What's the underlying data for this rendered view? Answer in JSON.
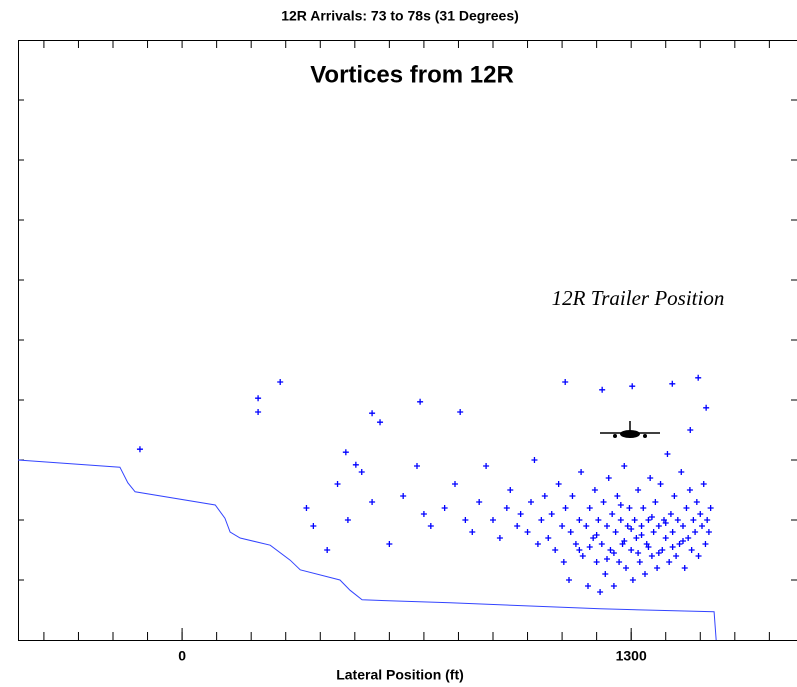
{
  "chart_data": {
    "type": "scatter",
    "title": "12R Arrivals: 73 to 78s (31 Degrees)",
    "annotations": [
      "Vortices from 12R",
      "12R Trailer Position"
    ],
    "xlabel": "Lateral Position (ft)",
    "xlim": [
      -475,
      1780
    ],
    "ylim": [
      0,
      10
    ],
    "xticks": [
      0,
      1300
    ],
    "xminor_ticks": [
      -400,
      -300,
      -200,
      -100,
      0,
      100,
      200,
      300,
      400,
      500,
      600,
      700,
      800,
      900,
      1000,
      1100,
      1200,
      1300,
      1400,
      1500,
      1600,
      1700
    ],
    "yticks": [
      1,
      2,
      3,
      4,
      5,
      6,
      7,
      8,
      9
    ],
    "color": "#0000ff",
    "x": [
      -122,
      220,
      220,
      284,
      550,
      573,
      474,
      503,
      689,
      805,
      1109,
      1216,
      1303,
      1419,
      1494,
      1517,
      1471,
      360,
      380,
      420,
      450,
      480,
      520,
      550,
      600,
      640,
      680,
      700,
      720,
      760,
      790,
      820,
      840,
      860,
      880,
      900,
      920,
      940,
      950,
      970,
      980,
      1000,
      1010,
      1020,
      1030,
      1040,
      1050,
      1060,
      1070,
      1080,
      1090,
      1100,
      1105,
      1110,
      1120,
      1125,
      1130,
      1140,
      1150,
      1155,
      1160,
      1170,
      1175,
      1180,
      1190,
      1195,
      1200,
      1205,
      1210,
      1215,
      1220,
      1225,
      1230,
      1235,
      1240,
      1245,
      1250,
      1255,
      1260,
      1265,
      1270,
      1275,
      1280,
      1285,
      1290,
      1295,
      1300,
      1305,
      1310,
      1315,
      1320,
      1325,
      1330,
      1335,
      1340,
      1345,
      1350,
      1355,
      1360,
      1365,
      1370,
      1375,
      1380,
      1385,
      1390,
      1395,
      1400,
      1405,
      1410,
      1415,
      1420,
      1425,
      1430,
      1435,
      1440,
      1445,
      1450,
      1455,
      1460,
      1465,
      1470,
      1475,
      1480,
      1485,
      1490,
      1495,
      1500,
      1505,
      1510,
      1515,
      1520,
      1525,
      1530,
      1150,
      1200,
      1250,
      1300,
      1350,
      1400,
      1450,
      1230,
      1280,
      1330,
      1380,
      1180,
      1420,
      1270,
      1320,
      1360
    ],
    "y": [
      3.18,
      4.03,
      3.8,
      4.3,
      3.78,
      3.63,
      3.13,
      2.92,
      3.97,
      3.8,
      4.3,
      4.17,
      4.23,
      4.27,
      4.37,
      3.87,
      3.5,
      2.2,
      1.9,
      1.5,
      2.6,
      2.0,
      2.8,
      2.3,
      1.6,
      2.4,
      2.9,
      2.1,
      1.9,
      2.2,
      2.6,
      2.0,
      1.8,
      2.3,
      2.9,
      2.0,
      1.7,
      2.2,
      2.5,
      1.9,
      2.1,
      1.8,
      2.3,
      3.0,
      1.6,
      2.0,
      2.4,
      1.7,
      2.1,
      1.5,
      2.6,
      1.9,
      1.3,
      2.2,
      1.0,
      1.8,
      2.4,
      1.6,
      2.0,
      2.8,
      1.4,
      1.9,
      0.9,
      2.2,
      1.7,
      2.5,
      1.3,
      2.0,
      0.8,
      1.6,
      2.3,
      1.1,
      1.9,
      2.7,
      1.5,
      2.1,
      0.9,
      1.8,
      2.4,
      1.3,
      2.0,
      1.6,
      2.9,
      1.2,
      1.9,
      2.2,
      1.5,
      1.0,
      2.0,
      1.7,
      2.5,
      1.3,
      1.9,
      2.2,
      1.1,
      1.6,
      2.0,
      2.7,
      1.4,
      1.8,
      2.3,
      1.2,
      1.9,
      2.6,
      1.5,
      2.0,
      1.7,
      3.1,
      1.3,
      2.1,
      1.8,
      2.4,
      1.4,
      2.0,
      1.6,
      2.8,
      1.9,
      1.2,
      2.2,
      1.7,
      2.5,
      1.5,
      2.0,
      1.8,
      2.3,
      1.4,
      2.1,
      1.9,
      2.6,
      1.6,
      2.0,
      1.8,
      2.2,
      1.5,
      1.75,
      1.45,
      1.85,
      1.55,
      1.95,
      1.65,
      1.35,
      1.65,
      1.75,
      1.45,
      1.55,
      1.55,
      2.25,
      1.45,
      2.05
    ],
    "boundary_x": [
      -475,
      -180,
      -157,
      -136,
      96,
      124,
      139,
      168,
      255,
      313,
      342,
      457,
      486,
      521,
      776,
      1210,
      1540,
      1546
    ],
    "boundary_y": [
      3.0,
      2.88,
      2.62,
      2.47,
      2.25,
      2.03,
      1.8,
      1.7,
      1.58,
      1.33,
      1.17,
      1.0,
      0.83,
      0.67,
      0.62,
      0.52,
      0.47,
      0
    ]
  }
}
